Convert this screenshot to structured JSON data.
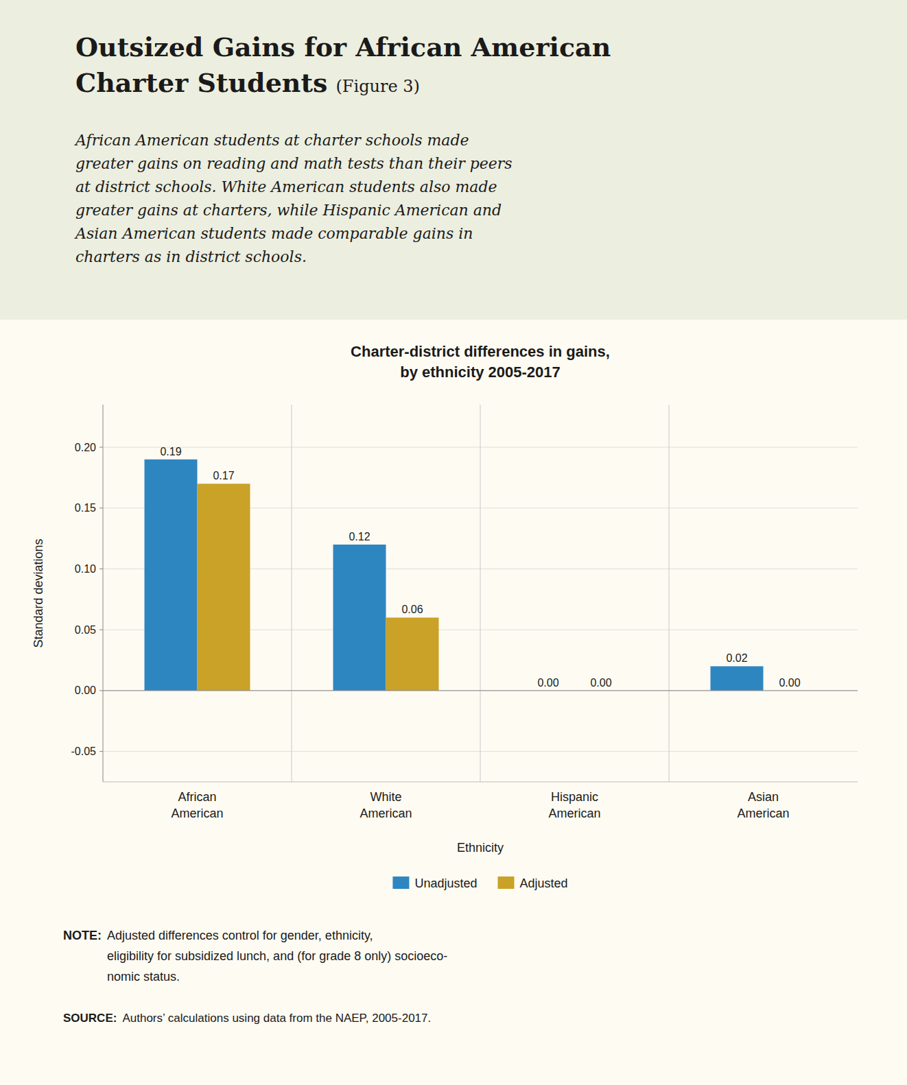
{
  "page": {
    "title": "Outsized Gains for African American\nCharter Students",
    "title_suffix": "(Figure 3)",
    "subtitle": "African American students at charter schools made\ngreater gains on reading and math tests than their peers\nat district schools. White American students also made\ngreater gains at charters, while Hispanic American and\nAsian American students made comparable gains in\ncharters as in district schools.",
    "note_label": "NOTE:",
    "note": "Adjusted differences control for gender, ethnicity,\neligibility for subsidized lunch, and (for grade 8 only) socioeco-\nnomic status.",
    "source_label": "SOURCE:",
    "source": "Authors’ calculations using data from the NAEP, 2005-2017."
  },
  "chart_data": {
    "type": "bar",
    "title": "Charter-district differences in gains,\nby ethnicity 2005-2017",
    "categories": [
      "African\nAmerican",
      "White\nAmerican",
      "Hispanic\nAmerican",
      "Asian\nAmerican"
    ],
    "series": [
      {
        "name": "Unadjusted",
        "color": "#2E86C1",
        "values": [
          0.19,
          0.12,
          0.0,
          0.02
        ],
        "value_labels": [
          "0.19",
          "0.12",
          "0.00",
          "0.02"
        ]
      },
      {
        "name": "Adjusted",
        "color": "#C9A227",
        "values": [
          0.17,
          0.06,
          0.0,
          0.0
        ],
        "value_labels": [
          "0.17",
          "0.06",
          "0.00",
          "0.00"
        ]
      }
    ],
    "xlabel": "Ethnicity",
    "ylabel": "Standard deviations",
    "ylim": [
      -0.075,
      0.235
    ],
    "yticks": [
      -0.05,
      {
        "value": 0.0,
        "label": "0.00"
      },
      0.05,
      {
        "value": 0.1,
        "label": "0.10"
      },
      0.15,
      {
        "value": 0.2,
        "label": "0.20"
      }
    ],
    "grid": true,
    "legend": "bottom",
    "data_labels": true
  }
}
